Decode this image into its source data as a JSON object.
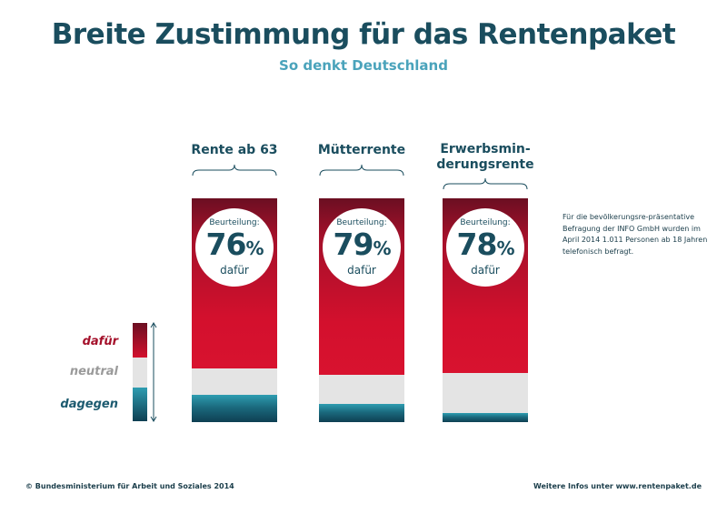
{
  "header": {
    "title": "Breite Zustimmung für das Rentenpaket",
    "subtitle": "So denkt Deutschland"
  },
  "chart_data": {
    "type": "bar",
    "stacked": true,
    "title": "Breite Zustimmung für das Rentenpaket",
    "subtitle": "So denkt Deutschland",
    "categories": [
      "Rente ab 63",
      "Mütterrente",
      "Erwerbsminderungsrente"
    ],
    "category_labels": [
      [
        "Rente ab 63"
      ],
      [
        "Mütterrente"
      ],
      [
        "Erwerbsmin-",
        "derungsrente"
      ]
    ],
    "series": [
      {
        "name": "dafür",
        "values": [
          76,
          79,
          78
        ],
        "color": "#d3102d"
      },
      {
        "name": "neutral",
        "values": [
          12,
          13,
          18
        ],
        "color": "#e4e4e4"
      },
      {
        "name": "dagegen",
        "values": [
          12,
          8,
          4
        ],
        "color": "#0e3f52"
      }
    ],
    "ylim": [
      0,
      100
    ],
    "annotation_label": "Beurteilung:",
    "annotation_suffix": "dafür",
    "percent_sign": "%",
    "legend_position": "left"
  },
  "legend": {
    "dafuer": {
      "label": "dafür",
      "color": "#a4102a"
    },
    "neutral": {
      "label": "neutral",
      "color": "#9a9a9a"
    },
    "dagegen": {
      "label": "dagegen",
      "color": "#1d5b70"
    }
  },
  "note": "Für die bevölkerungsre-präsentative Befragung der INFO GmbH wurden im April 2014 1.011 Personen ab 18 Jahren telefonisch befragt.",
  "footer": {
    "copyright": "© Bundesministerium für Arbeit und Soziales 2014",
    "more_info": "Weitere Infos unter www.rentenpaket.de"
  }
}
